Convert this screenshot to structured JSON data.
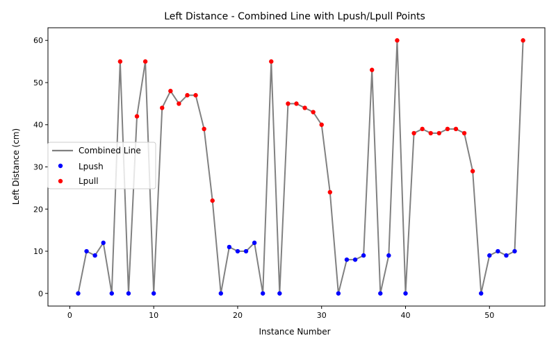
{
  "chart_data": {
    "type": "line",
    "title": "Left Distance - Combined Line with Lpush/Lpull Points",
    "xlabel": "Instance Number",
    "ylabel": "Left Distance (cm)",
    "xlim": [
      -2.6,
      56.6
    ],
    "ylim": [
      -3,
      63
    ],
    "xticks": [
      0,
      10,
      20,
      30,
      40,
      50
    ],
    "yticks": [
      0,
      10,
      20,
      30,
      40,
      50,
      60
    ],
    "grid": false,
    "legend_position": "center-left",
    "legend": [
      {
        "label": "Combined Line",
        "kind": "line",
        "color": "#808080"
      },
      {
        "label": "Lpush",
        "kind": "marker",
        "color": "#0000ff"
      },
      {
        "label": "Lpull",
        "kind": "marker",
        "color": "#ff0000"
      }
    ],
    "x": [
      1,
      2,
      3,
      4,
      5,
      6,
      7,
      8,
      9,
      10,
      11,
      12,
      13,
      14,
      15,
      16,
      17,
      18,
      19,
      20,
      21,
      22,
      23,
      24,
      25,
      26,
      27,
      28,
      29,
      30,
      31,
      32,
      33,
      34,
      35,
      36,
      37,
      38,
      39,
      40,
      41,
      42,
      43,
      44,
      45,
      46,
      47,
      48,
      49,
      50,
      51,
      52,
      53,
      54
    ],
    "y": [
      0,
      10,
      9,
      12,
      0,
      55,
      0,
      42,
      55,
      0,
      44,
      48,
      45,
      47,
      47,
      39,
      22,
      0,
      11,
      10,
      10,
      12,
      0,
      55,
      0,
      45,
      45,
      44,
      43,
      40,
      24,
      0,
      8,
      8,
      9,
      53,
      0,
      9,
      60,
      0,
      38,
      39,
      38,
      38,
      39,
      39,
      38,
      29,
      0,
      9,
      10,
      9,
      10,
      60
    ],
    "point_type": [
      "Lpush",
      "Lpush",
      "Lpush",
      "Lpush",
      "Lpush",
      "Lpull",
      "Lpush",
      "Lpull",
      "Lpull",
      "Lpush",
      "Lpull",
      "Lpull",
      "Lpull",
      "Lpull",
      "Lpull",
      "Lpull",
      "Lpull",
      "Lpush",
      "Lpush",
      "Lpush",
      "Lpush",
      "Lpush",
      "Lpush",
      "Lpull",
      "Lpush",
      "Lpull",
      "Lpull",
      "Lpull",
      "Lpull",
      "Lpull",
      "Lpull",
      "Lpush",
      "Lpush",
      "Lpush",
      "Lpush",
      "Lpull",
      "Lpush",
      "Lpush",
      "Lpull",
      "Lpush",
      "Lpull",
      "Lpull",
      "Lpull",
      "Lpull",
      "Lpull",
      "Lpull",
      "Lpull",
      "Lpull",
      "Lpush",
      "Lpush",
      "Lpush",
      "Lpush",
      "Lpush",
      "Lpull"
    ],
    "colors": {
      "line": "#808080",
      "Lpush": "#0000ff",
      "Lpull": "#ff0000"
    }
  }
}
